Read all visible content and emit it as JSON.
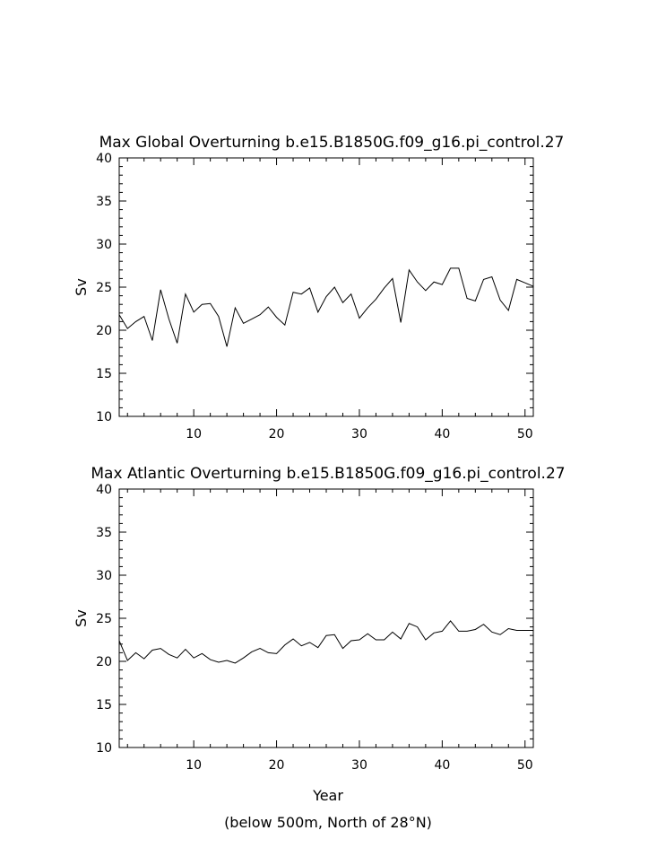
{
  "page": {
    "footer_xlabel": "Year",
    "footer_note": "(below 500m, North of 28°N)"
  },
  "chart_data": [
    {
      "type": "line",
      "title": "Max Global Overturning b.e15.B1850G.f09_g16.pi_control.27",
      "xlabel": "",
      "ylabel": "Sv",
      "xlim": [
        1,
        51
      ],
      "ylim": [
        10,
        40
      ],
      "xticks": [
        10,
        20,
        30,
        40,
        50
      ],
      "yticks": [
        10,
        15,
        20,
        25,
        30,
        35,
        40
      ],
      "grid": false,
      "series": [
        {
          "values": [
            [
              1,
              21.8
            ],
            [
              2,
              20.2
            ],
            [
              3,
              21.0
            ],
            [
              4,
              21.6
            ],
            [
              5,
              18.8
            ],
            [
              6,
              24.7
            ],
            [
              7,
              21.3
            ],
            [
              8,
              18.5
            ],
            [
              9,
              24.2
            ],
            [
              10,
              22.1
            ],
            [
              11,
              23.0
            ],
            [
              12,
              23.1
            ],
            [
              13,
              21.6
            ],
            [
              14,
              18.1
            ],
            [
              15,
              22.6
            ],
            [
              16,
              20.8
            ],
            [
              17,
              21.3
            ],
            [
              18,
              21.8
            ],
            [
              19,
              22.7
            ],
            [
              20,
              21.5
            ],
            [
              21,
              20.6
            ],
            [
              22,
              24.4
            ],
            [
              23,
              24.2
            ],
            [
              24,
              24.9
            ],
            [
              25,
              22.1
            ],
            [
              26,
              23.9
            ],
            [
              27,
              25.0
            ],
            [
              28,
              23.2
            ],
            [
              29,
              24.2
            ],
            [
              30,
              21.4
            ],
            [
              31,
              22.6
            ],
            [
              32,
              23.6
            ],
            [
              33,
              24.9
            ],
            [
              34,
              26.0
            ],
            [
              35,
              20.9
            ],
            [
              36,
              27.0
            ],
            [
              37,
              25.6
            ],
            [
              38,
              24.6
            ],
            [
              39,
              25.6
            ],
            [
              40,
              25.3
            ],
            [
              41,
              27.2
            ],
            [
              42,
              27.2
            ],
            [
              43,
              23.7
            ],
            [
              44,
              23.4
            ],
            [
              45,
              25.9
            ],
            [
              46,
              26.2
            ],
            [
              47,
              23.5
            ],
            [
              48,
              22.3
            ],
            [
              49,
              25.9
            ],
            [
              50,
              25.5
            ],
            [
              51,
              25.1
            ]
          ]
        }
      ]
    },
    {
      "type": "line",
      "title": "Max Atlantic Overturning b.e15.B1850G.f09_g16.pi_control.27",
      "xlabel": "Year",
      "ylabel": "Sv",
      "xlim": [
        1,
        51
      ],
      "ylim": [
        10,
        40
      ],
      "xticks": [
        10,
        20,
        30,
        40,
        50
      ],
      "yticks": [
        10,
        15,
        20,
        25,
        30,
        35,
        40
      ],
      "grid": false,
      "series": [
        {
          "values": [
            [
              1,
              22.4
            ],
            [
              2,
              20.1
            ],
            [
              3,
              21.0
            ],
            [
              4,
              20.3
            ],
            [
              5,
              21.3
            ],
            [
              6,
              21.5
            ],
            [
              7,
              20.8
            ],
            [
              8,
              20.4
            ],
            [
              9,
              21.4
            ],
            [
              10,
              20.4
            ],
            [
              11,
              20.9
            ],
            [
              12,
              20.2
            ],
            [
              13,
              19.9
            ],
            [
              14,
              20.1
            ],
            [
              15,
              19.8
            ],
            [
              16,
              20.4
            ],
            [
              17,
              21.1
            ],
            [
              18,
              21.5
            ],
            [
              19,
              21.0
            ],
            [
              20,
              20.9
            ],
            [
              21,
              21.9
            ],
            [
              22,
              22.6
            ],
            [
              23,
              21.8
            ],
            [
              24,
              22.2
            ],
            [
              25,
              21.6
            ],
            [
              26,
              23.0
            ],
            [
              27,
              23.1
            ],
            [
              28,
              21.5
            ],
            [
              29,
              22.4
            ],
            [
              30,
              22.5
            ],
            [
              31,
              23.2
            ],
            [
              32,
              22.5
            ],
            [
              33,
              22.5
            ],
            [
              34,
              23.4
            ],
            [
              35,
              22.6
            ],
            [
              36,
              24.4
            ],
            [
              37,
              24.0
            ],
            [
              38,
              22.5
            ],
            [
              39,
              23.3
            ],
            [
              40,
              23.5
            ],
            [
              41,
              24.7
            ],
            [
              42,
              23.5
            ],
            [
              43,
              23.5
            ],
            [
              44,
              23.7
            ],
            [
              45,
              24.3
            ],
            [
              46,
              23.4
            ],
            [
              47,
              23.1
            ],
            [
              48,
              23.8
            ],
            [
              49,
              23.6
            ],
            [
              50,
              23.6
            ],
            [
              51,
              23.6
            ]
          ]
        }
      ]
    }
  ]
}
